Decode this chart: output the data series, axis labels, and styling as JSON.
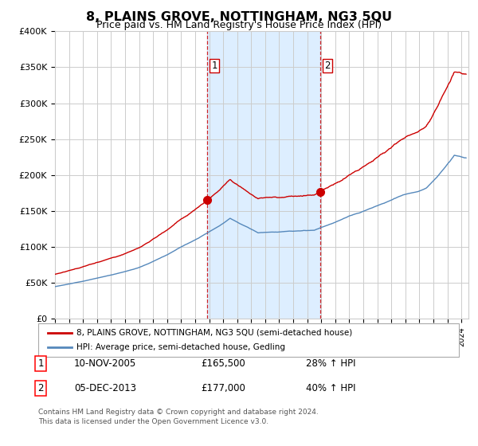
{
  "title": "8, PLAINS GROVE, NOTTINGHAM, NG3 5QU",
  "subtitle": "Price paid vs. HM Land Registry's House Price Index (HPI)",
  "legend_line1": "8, PLAINS GROVE, NOTTINGHAM, NG3 5QU (semi-detached house)",
  "legend_line2": "HPI: Average price, semi-detached house, Gedling",
  "transactions": [
    {
      "num": 1,
      "date": "10-NOV-2005",
      "price": 165500,
      "pct": "28%",
      "dir": "↑"
    },
    {
      "num": 2,
      "date": "05-DEC-2013",
      "price": 177000,
      "pct": "40%",
      "dir": "↑"
    }
  ],
  "transaction_dates_decimal": [
    2005.87,
    2013.92
  ],
  "transaction_prices": [
    165500,
    177000
  ],
  "footnote1": "Contains HM Land Registry data © Crown copyright and database right 2024.",
  "footnote2": "This data is licensed under the Open Government Licence v3.0.",
  "red_color": "#cc0000",
  "blue_color": "#5588bb",
  "shade_color": "#ddeeff",
  "vline_color": "#cc0000",
  "bg_color": "#ffffff",
  "grid_color": "#cccccc",
  "ylim": [
    0,
    400000
  ],
  "xlim_start": 1995.0,
  "xlim_end": 2024.5
}
